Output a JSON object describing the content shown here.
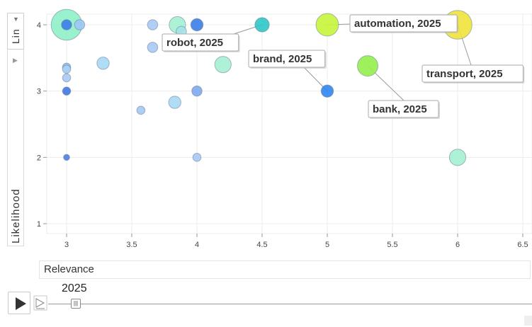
{
  "chart_data": {
    "type": "scatter",
    "xlabel": "Relevance",
    "ylabel": "Likelihood",
    "y_scale": "Lin",
    "xlim": [
      2.85,
      6.55
    ],
    "ylim": [
      0.9,
      4.2
    ],
    "x_ticks": [
      "3",
      "3.5",
      "4",
      "4.5",
      "5",
      "5.5",
      "6",
      "6.5"
    ],
    "y_ticks": [
      "1",
      "2",
      "3",
      "4"
    ],
    "grid": true,
    "year": "2025",
    "points": [
      {
        "x": 3.0,
        "y": 4.0,
        "size": 15,
        "color": "#8ff0c8"
      },
      {
        "x": 3.0,
        "y": 4.0,
        "size": 5,
        "color": "#3a7de8"
      },
      {
        "x": 3.1,
        "y": 4.0,
        "size": 5,
        "color": "#9cc7f5"
      },
      {
        "x": 3.0,
        "y": 3.36,
        "size": 4,
        "color": "#8db7f2"
      },
      {
        "x": 3.0,
        "y": 3.33,
        "size": 4,
        "color": "#a8d0f7"
      },
      {
        "x": 3.0,
        "y": 3.2,
        "size": 4,
        "color": "#a8c9f5"
      },
      {
        "x": 3.0,
        "y": 3.0,
        "size": 4,
        "color": "#3f78e2"
      },
      {
        "x": 3.0,
        "y": 2.0,
        "size": 3,
        "color": "#4a7fe0"
      },
      {
        "x": 3.28,
        "y": 3.42,
        "size": 6,
        "color": "#a9d8f5"
      },
      {
        "x": 3.57,
        "y": 2.71,
        "size": 4,
        "color": "#a5c8f4"
      },
      {
        "x": 3.66,
        "y": 4.0,
        "size": 5,
        "color": "#a9c9f5"
      },
      {
        "x": 3.66,
        "y": 3.66,
        "size": 5,
        "color": "#a9c9f5"
      },
      {
        "x": 3.83,
        "y": 2.83,
        "size": 6,
        "color": "#a9d8f5"
      },
      {
        "x": 3.85,
        "y": 4.0,
        "size": 8,
        "color": "#a4efd3"
      },
      {
        "x": 3.88,
        "y": 3.9,
        "size": 5,
        "color": "#a3e2e8"
      },
      {
        "x": 4.0,
        "y": 4.0,
        "size": 6,
        "color": "#3a7de8"
      },
      {
        "x": 4.0,
        "y": 3.0,
        "size": 5,
        "color": "#7ea8ef"
      },
      {
        "x": 4.0,
        "y": 2.0,
        "size": 4,
        "color": "#a9c8f5"
      },
      {
        "x": 4.2,
        "y": 3.4,
        "size": 8,
        "color": "#a4efd3"
      },
      {
        "x": 4.5,
        "y": 4.0,
        "size": 7,
        "color": "#2ec6c6"
      },
      {
        "x": 5.0,
        "y": 4.0,
        "size": 11,
        "color": "#c6f53a"
      },
      {
        "x": 5.0,
        "y": 3.0,
        "size": 6,
        "color": "#2f86ee"
      },
      {
        "x": 5.31,
        "y": 3.38,
        "size": 10,
        "color": "#93f04a"
      },
      {
        "x": 6.0,
        "y": 4.0,
        "size": 14,
        "color": "#f0e33a"
      },
      {
        "x": 6.0,
        "y": 2.0,
        "size": 8,
        "color": "#a4efd3"
      }
    ],
    "annotations": [
      {
        "text": "robot, 2025",
        "x": 4.5,
        "y": 4.0
      },
      {
        "text": "automation, 2025",
        "x": 5.0,
        "y": 4.0
      },
      {
        "text": "brand, 2025",
        "x": 5.0,
        "y": 3.0
      },
      {
        "text": "transport, 2025",
        "x": 6.0,
        "y": 4.0
      },
      {
        "text": "bank, 2025",
        "x": 5.31,
        "y": 3.38
      }
    ]
  }
}
